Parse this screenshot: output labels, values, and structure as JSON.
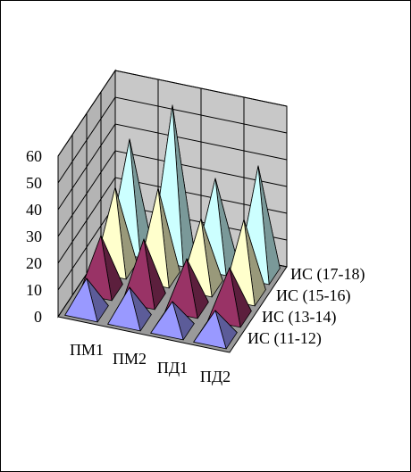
{
  "chart_data": {
    "type": "pyramid3d",
    "categories": [
      "ПМ1",
      "ПМ2",
      "ПД1",
      "ПД2"
    ],
    "series": [
      {
        "name": "ИС (11-12)",
        "color": "#9999ff",
        "values": [
          12,
          12,
          10,
          10
        ]
      },
      {
        "name": "ИС (13-14)",
        "color": "#993366",
        "values": [
          20,
          22,
          18,
          18
        ]
      },
      {
        "name": "ИС (15-16)",
        "color": "#ffffcc",
        "values": [
          30,
          33,
          25,
          28
        ]
      },
      {
        "name": "ИС (17-18)",
        "color": "#ccffff",
        "values": [
          40,
          56,
          32,
          40
        ]
      }
    ],
    "ylim": [
      0,
      60
    ],
    "yticks": [
      0,
      10,
      20,
      30,
      40,
      50,
      60
    ],
    "grid": true
  }
}
